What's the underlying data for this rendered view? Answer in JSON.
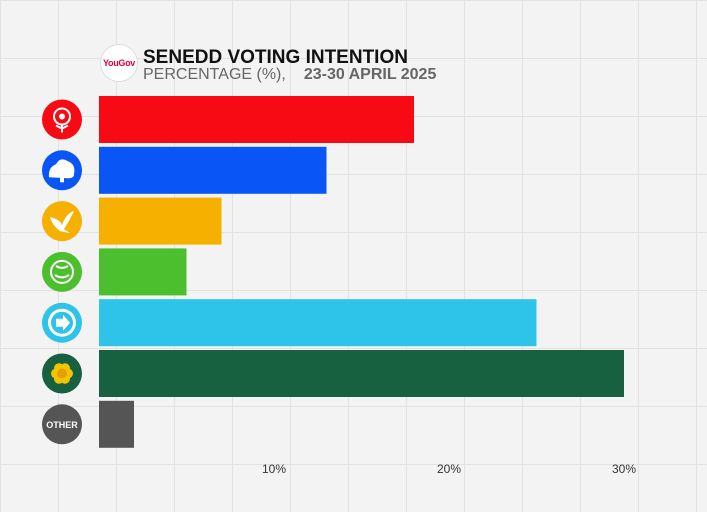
{
  "header": {
    "logo_text": "YouGov",
    "title": "SENEDD VOTING INTENTION",
    "subtitle": "PERCENTAGE (%),",
    "date": "23-30 APRIL 2025"
  },
  "chart_data": {
    "type": "bar",
    "orientation": "horizontal",
    "title": "SENEDD VOTING INTENTION",
    "subtitle": "PERCENTAGE (%), 23-30 APRIL 2025",
    "xlim": [
      0,
      30
    ],
    "xticks": [
      10,
      20,
      30
    ],
    "xtick_labels": [
      "10%",
      "20%",
      "30%"
    ],
    "categories": [
      {
        "icon": "labour-rose-icon",
        "color": "#f70a13"
      },
      {
        "icon": "conservative-tree-icon",
        "color": "#0a55f5"
      },
      {
        "icon": "libdem-bird-icon",
        "color": "#f5b000"
      },
      {
        "icon": "green-earth-icon",
        "color": "#4cbf2e"
      },
      {
        "icon": "reform-arrow-icon",
        "color": "#2ec3e8"
      },
      {
        "icon": "plaid-poppy-icon",
        "color": "#176040"
      },
      {
        "icon": "other-circle-icon",
        "color": "#555555",
        "label": "OTHER"
      }
    ],
    "values": [
      18,
      13,
      7,
      5,
      25,
      30,
      2
    ],
    "grid": true
  }
}
